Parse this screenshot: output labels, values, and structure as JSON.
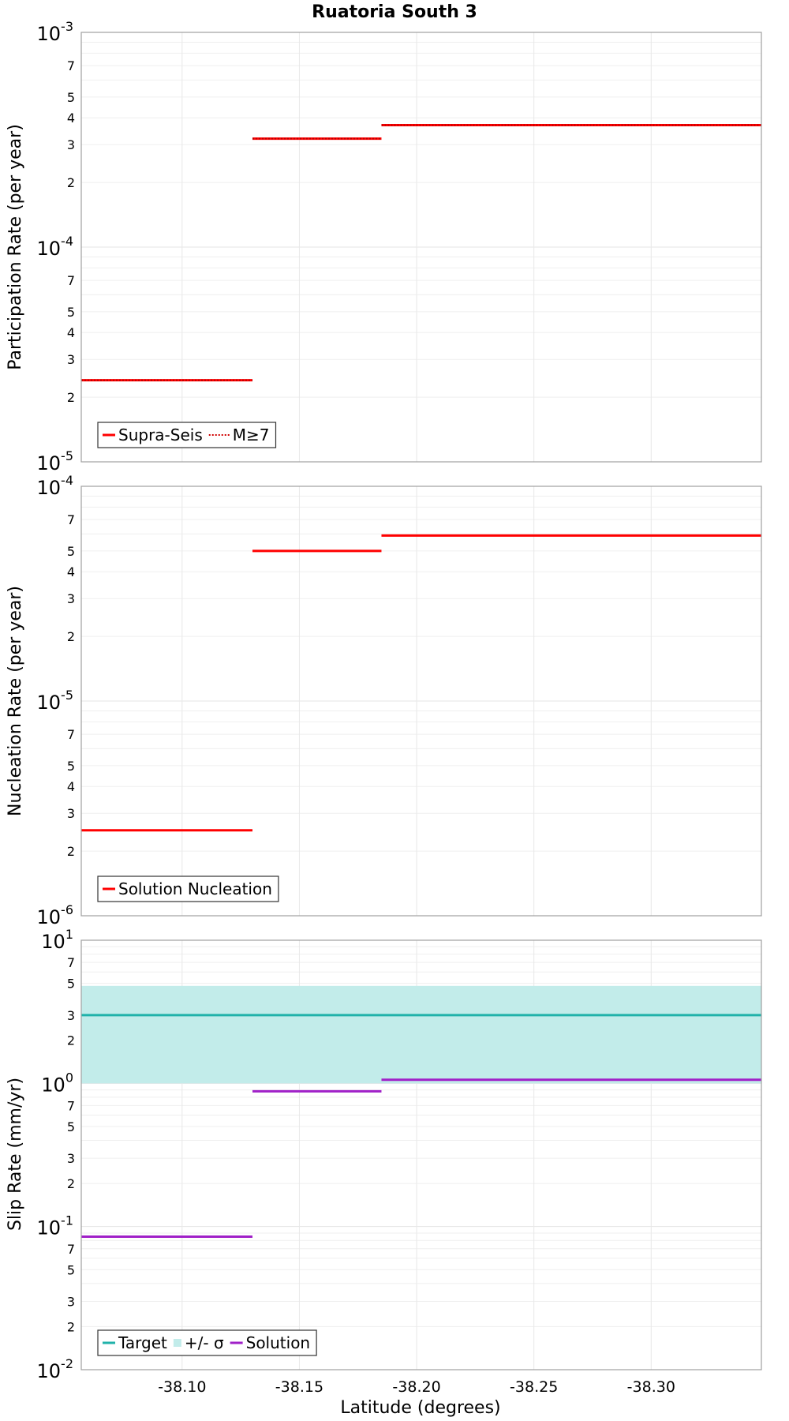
{
  "chart_data": [
    {
      "type": "line",
      "title": "Ruatoria South 3",
      "ylabel": "Participation Rate (per year)",
      "xlabel": "",
      "yscale": "log",
      "ylim": [
        1e-05,
        0.001
      ],
      "xlim": [
        -38.057,
        -38.347
      ],
      "xticks": [
        -38.1,
        -38.15,
        -38.2,
        -38.25,
        -38.3
      ],
      "xtick_labels": [
        "-38.10",
        "-38.15",
        "-38.20",
        "-38.25",
        "-38.30"
      ],
      "y_major_labels": [
        {
          "base": "10",
          "exp": "-3"
        },
        {
          "base": "10",
          "exp": "-4"
        },
        {
          "base": "10",
          "exp": "-5"
        }
      ],
      "y_minor_labels": [
        "7",
        "5",
        "4",
        "3",
        "2"
      ],
      "legend": [
        "Supra-Seis",
        "M≥7"
      ],
      "legend_position": "bottom-left",
      "series": [
        {
          "name": "Supra-Seis",
          "color": "#ff0000",
          "style": "solid",
          "segments": [
            {
              "x": [
                -38.057,
                -38.13
              ],
              "y": 2.4e-05
            },
            {
              "x": [
                -38.13,
                -38.185
              ],
              "y": 0.00032
            },
            {
              "x": [
                -38.185,
                -38.347
              ],
              "y": 0.00037
            }
          ]
        },
        {
          "name": "M≥7",
          "color": "#ff0000",
          "style": "dotted",
          "segments": [
            {
              "x": [
                -38.057,
                -38.13
              ],
              "y": 2.4e-05
            },
            {
              "x": [
                -38.13,
                -38.185
              ],
              "y": 0.00032
            },
            {
              "x": [
                -38.185,
                -38.347
              ],
              "y": 0.00037
            }
          ]
        }
      ]
    },
    {
      "type": "line",
      "title": "",
      "ylabel": "Nucleation Rate (per year)",
      "xlabel": "",
      "yscale": "log",
      "ylim": [
        1e-06,
        0.0001
      ],
      "xlim": [
        -38.057,
        -38.347
      ],
      "xticks": [
        -38.1,
        -38.15,
        -38.2,
        -38.25,
        -38.3
      ],
      "xtick_labels": [
        "-38.10",
        "-38.15",
        "-38.20",
        "-38.25",
        "-38.30"
      ],
      "y_major_labels": [
        {
          "base": "10",
          "exp": "-4"
        },
        {
          "base": "10",
          "exp": "-5"
        },
        {
          "base": "10",
          "exp": "-6"
        }
      ],
      "y_minor_labels": [
        "7",
        "5",
        "4",
        "3",
        "2"
      ],
      "legend": [
        "Solution Nucleation"
      ],
      "legend_position": "bottom-left",
      "series": [
        {
          "name": "Solution Nucleation",
          "color": "#ff0000",
          "style": "solid",
          "segments": [
            {
              "x": [
                -38.057,
                -38.13
              ],
              "y": 2.5e-06
            },
            {
              "x": [
                -38.13,
                -38.185
              ],
              "y": 5e-05
            },
            {
              "x": [
                -38.185,
                -38.347
              ],
              "y": 5.9e-05
            }
          ]
        }
      ]
    },
    {
      "type": "line",
      "title": "",
      "ylabel": "Slip Rate (mm/yr)",
      "xlabel": "Latitude (degrees)",
      "yscale": "log",
      "ylim": [
        0.01,
        10
      ],
      "xlim": [
        -38.057,
        -38.347
      ],
      "xticks": [
        -38.1,
        -38.15,
        -38.2,
        -38.25,
        -38.3
      ],
      "xtick_labels": [
        "-38.10",
        "-38.15",
        "-38.20",
        "-38.25",
        "-38.30"
      ],
      "y_major_labels": [
        {
          "base": "10",
          "exp": "1"
        },
        {
          "base": "10",
          "exp": "0"
        },
        {
          "base": "10",
          "exp": "-1"
        },
        {
          "base": "10",
          "exp": "-2"
        }
      ],
      "y_minor_labels": [
        "7",
        "5",
        "3",
        "2"
      ],
      "legend": [
        "Target",
        "+/- σ",
        "Solution"
      ],
      "legend_position": "bottom-left",
      "band": {
        "name": "+/- σ",
        "color": "#c2ecea",
        "x": [
          -38.057,
          -38.347
        ],
        "low": 1.0,
        "high": 4.8
      },
      "series": [
        {
          "name": "Target",
          "color": "#20b2aa",
          "style": "solid",
          "segments": [
            {
              "x": [
                -38.057,
                -38.347
              ],
              "y": 3.0
            }
          ]
        },
        {
          "name": "Solution",
          "color": "#a020c8",
          "style": "solid",
          "segments": [
            {
              "x": [
                -38.057,
                -38.13
              ],
              "y": 0.085
            },
            {
              "x": [
                -38.13,
                -38.185
              ],
              "y": 0.88
            },
            {
              "x": [
                -38.185,
                -38.347
              ],
              "y": 1.06
            }
          ]
        }
      ]
    }
  ]
}
